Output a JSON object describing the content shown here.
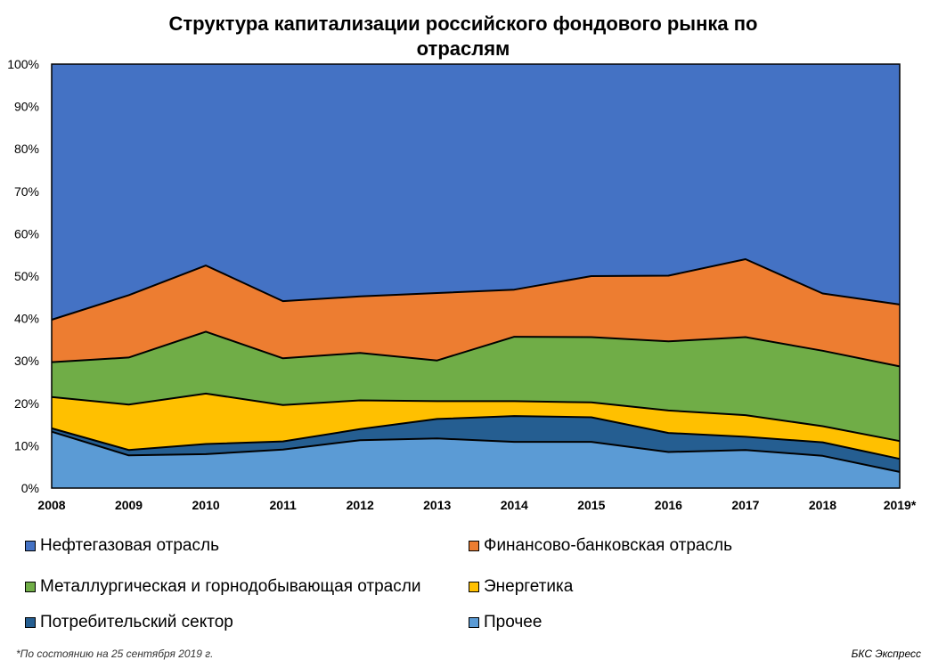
{
  "chart_data": {
    "type": "area",
    "stacked": true,
    "title_line1": "Структура капитализации российского фондового рынка по",
    "title_line2": "отраслям",
    "categories": [
      "2008",
      "2009",
      "2010",
      "2011",
      "2012",
      "2013",
      "2014",
      "2015",
      "2016",
      "2017",
      "2018",
      "2019*"
    ],
    "ylim": [
      0,
      100
    ],
    "yticks": [
      "0%",
      "10%",
      "20%",
      "30%",
      "40%",
      "50%",
      "60%",
      "70%",
      "80%",
      "90%",
      "100%"
    ],
    "series": [
      {
        "name": "Прочее",
        "color": "#5B9BD5",
        "values": [
          13.3,
          7.7,
          8.0,
          9.1,
          11.3,
          11.7,
          10.9,
          10.9,
          8.5,
          9.0,
          7.6,
          3.8
        ]
      },
      {
        "name": "Потребительский  сектор",
        "color": "#255E91",
        "values": [
          0.8,
          1.3,
          2.4,
          1.9,
          2.6,
          4.6,
          6.1,
          5.8,
          4.5,
          3.1,
          3.2,
          3.1
        ]
      },
      {
        "name": "Энергетика",
        "color": "#FFC000",
        "values": [
          7.4,
          10.7,
          11.9,
          8.6,
          6.8,
          4.2,
          3.5,
          3.5,
          5.3,
          5.1,
          3.8,
          4.2
        ]
      },
      {
        "name": "Металлургическая  и горнодобывающая отрасли",
        "color": "#70AD47",
        "values": [
          8.2,
          11.1,
          14.6,
          11.0,
          11.2,
          9.6,
          15.2,
          15.4,
          16.3,
          18.4,
          17.8,
          17.6
        ]
      },
      {
        "name": "Финансово-банковская  отрасль",
        "color": "#ED7D31",
        "values": [
          10.0,
          14.7,
          15.6,
          13.5,
          13.3,
          15.9,
          11.1,
          14.4,
          15.5,
          18.4,
          13.5,
          14.6
        ]
      },
      {
        "name": "Нефтегазовая отрасль",
        "color": "#4472C4",
        "values": [
          60.3,
          54.5,
          47.5,
          55.9,
          54.8,
          54.0,
          53.2,
          50.0,
          49.9,
          46.0,
          54.1,
          56.7
        ]
      }
    ],
    "legend": [
      {
        "label": "Нефтегазовая отрасль",
        "color": "#4472C4"
      },
      {
        "label": "Финансово-банковская  отрасль",
        "color": "#ED7D31"
      },
      {
        "label": "Металлургическая  и горнодобывающая отрасли",
        "color": "#70AD47"
      },
      {
        "label": "Энергетика",
        "color": "#FFC000"
      },
      {
        "label": "Потребительский  сектор",
        "color": "#255E91"
      },
      {
        "label": "Прочее",
        "color": "#5B9BD5"
      }
    ]
  },
  "footnote": "*По состоянию на 25 сентября 2019 г.",
  "source": "БКС Экспресс"
}
